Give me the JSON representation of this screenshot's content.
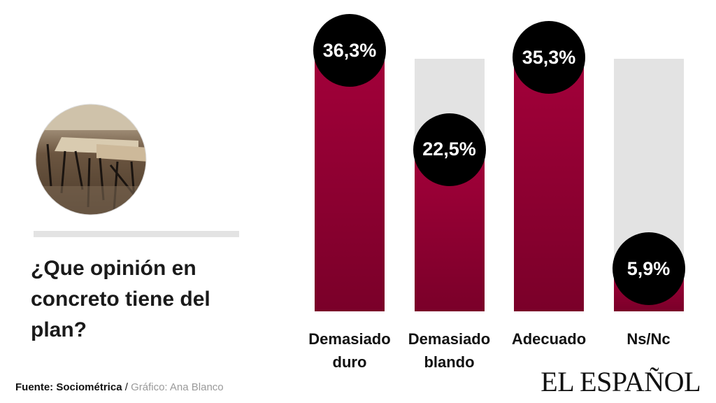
{
  "chart_data": {
    "type": "bar",
    "title": "¿Que opinión en concreto tiene del plan?",
    "categories": [
      "Demasiado duro",
      "Demasiado blando",
      "Adecuado",
      "Ns/Nc"
    ],
    "values": [
      36.3,
      22.5,
      35.3,
      5.9
    ],
    "value_labels": [
      "36,3%",
      "22,5%",
      "35,3%",
      "5,9%"
    ],
    "color": "#a3003a",
    "source": "Fuente: Sociométrica",
    "separator": "/",
    "credit": "Gráfico: Ana Blanco",
    "logo": "EL ESPAÑOL"
  }
}
